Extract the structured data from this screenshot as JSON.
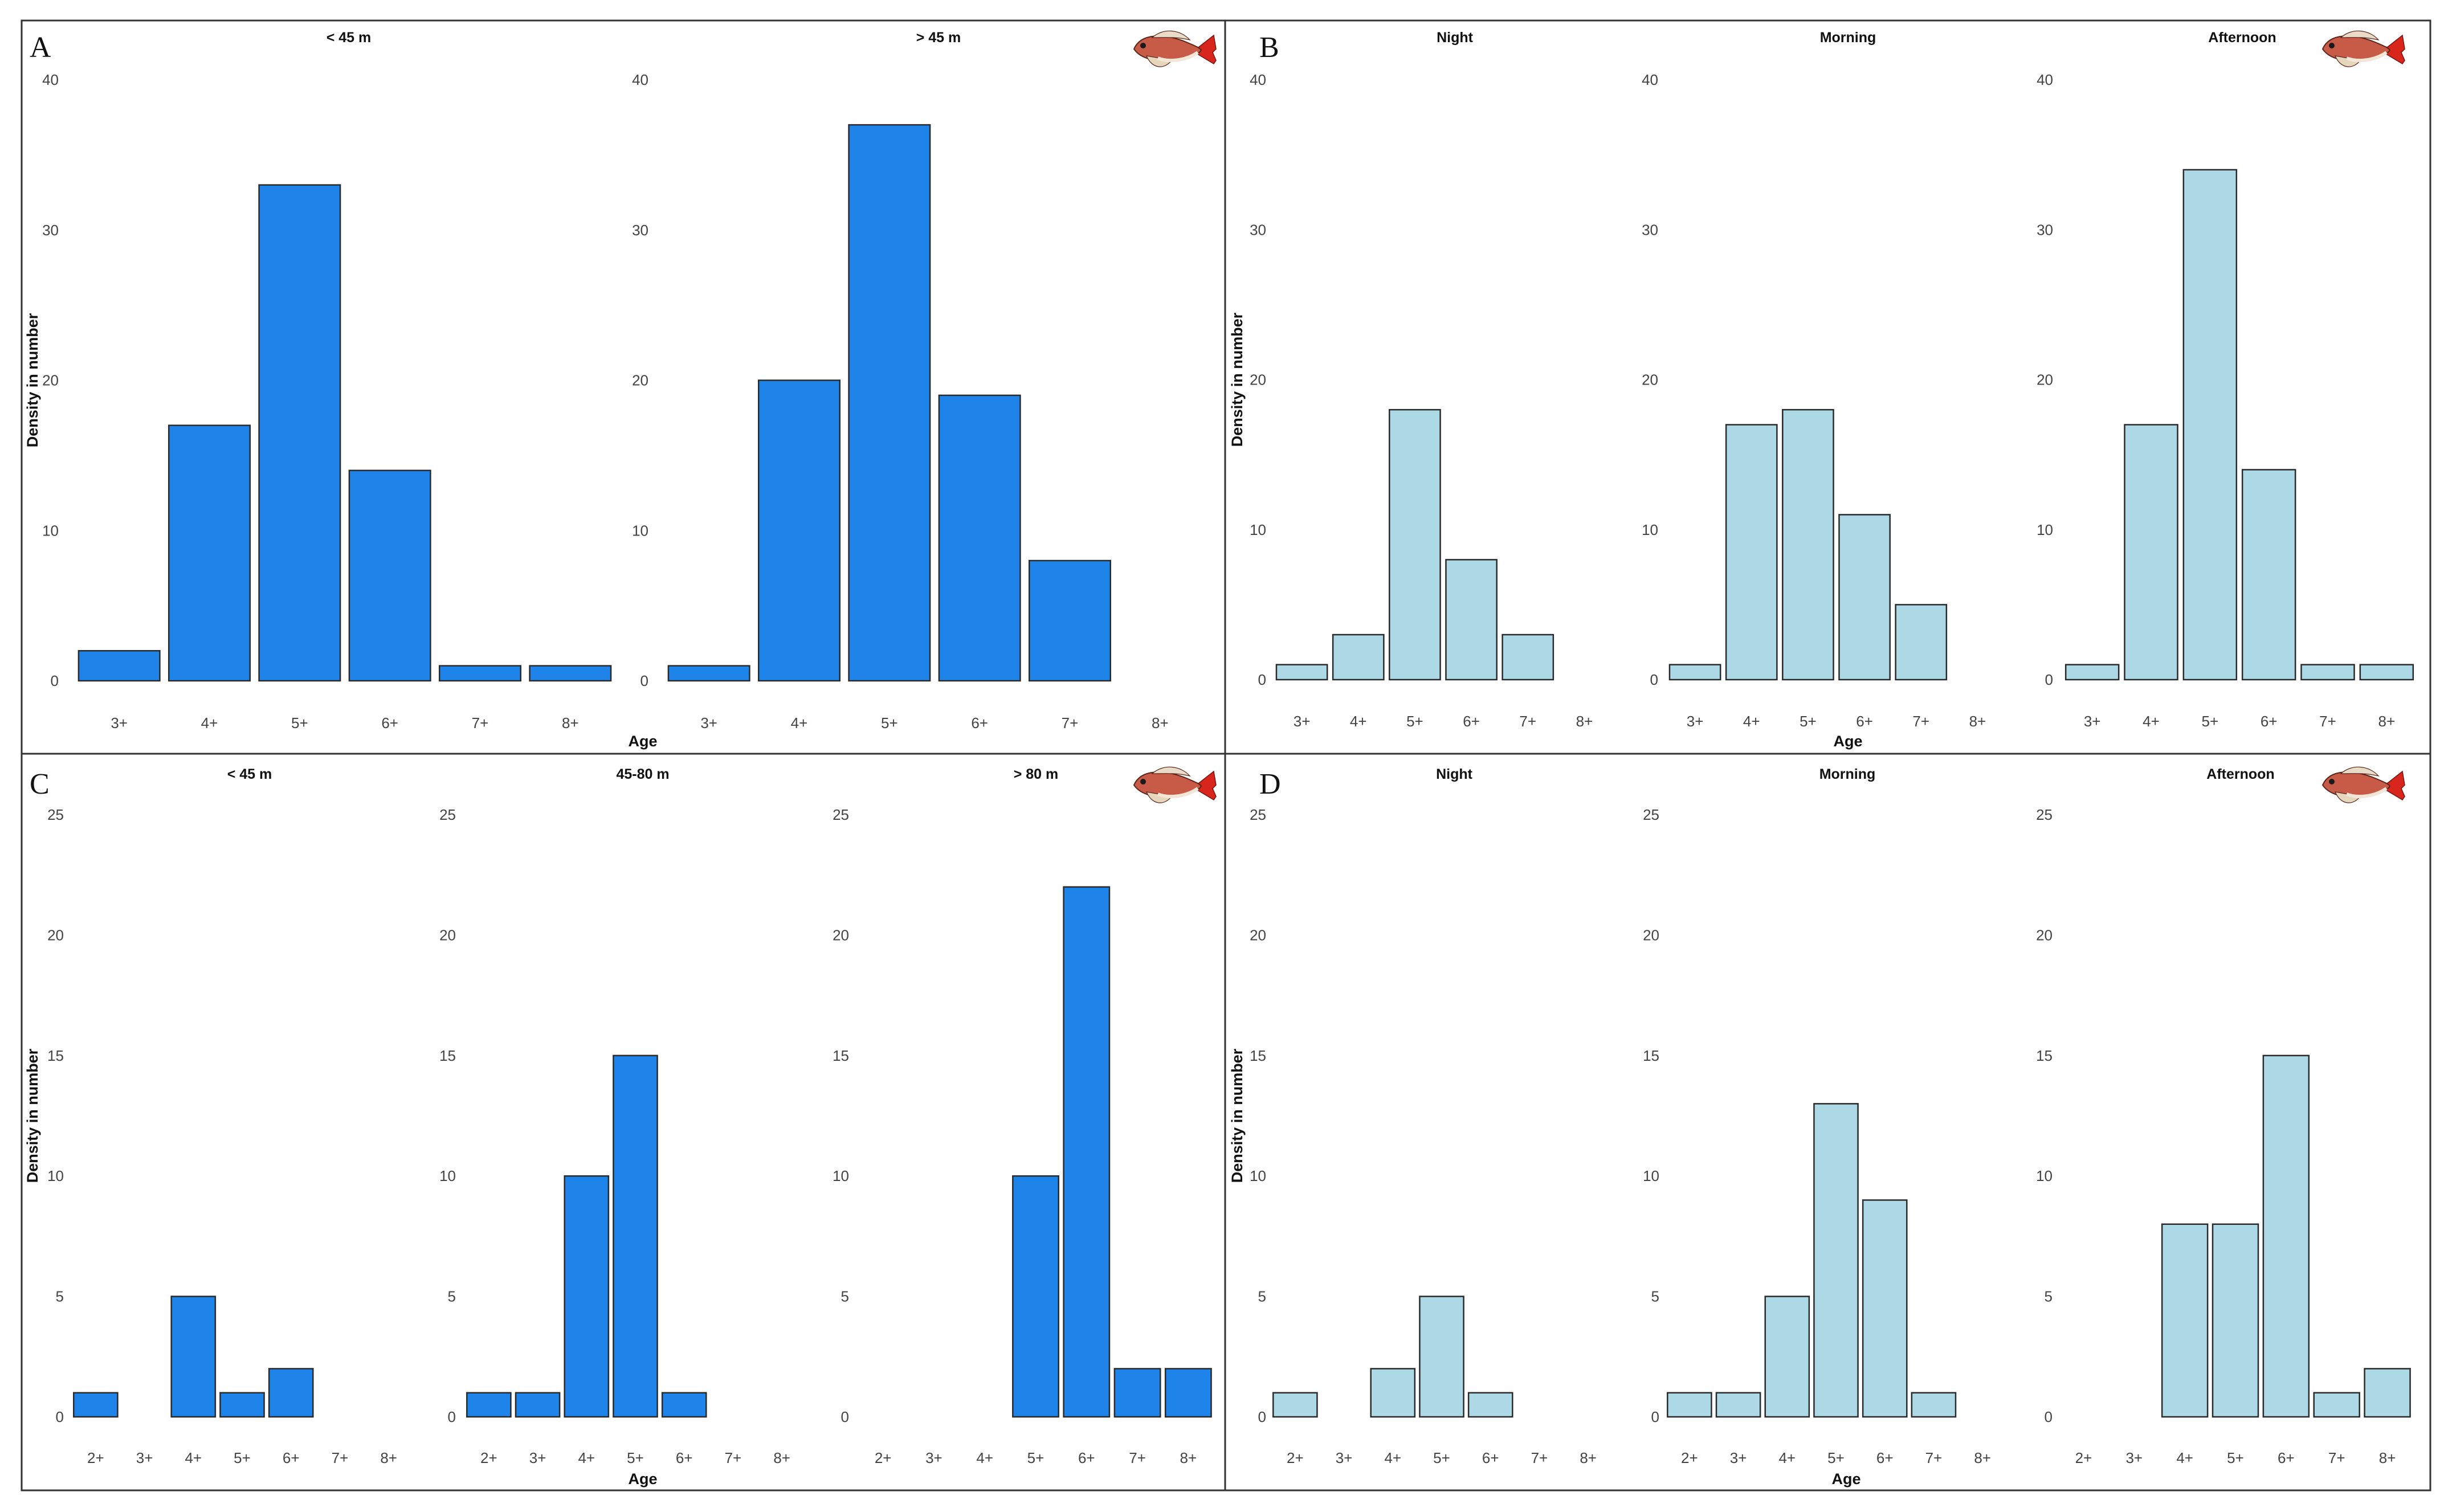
{
  "colors": {
    "dark_bar": "#1E84EA",
    "light_bar": "#ADD8E6",
    "bar_stroke": "#2a2a2a"
  },
  "icons": {
    "fish": "red-gurnard-fish-icon"
  },
  "chart_data": [
    {
      "id": "A",
      "letter": "A",
      "type": "bar",
      "ylabel": "Density in number",
      "xlabel": "Age",
      "ylim": [
        0,
        40
      ],
      "yticks": [
        0,
        10,
        20,
        30,
        40
      ],
      "categories": [
        "3+",
        "4+",
        "5+",
        "6+",
        "7+",
        "8+"
      ],
      "fill": "dark",
      "facets": [
        {
          "title": "< 45 m",
          "values": [
            2,
            17,
            33,
            14,
            1,
            1
          ]
        },
        {
          "title": "> 45 m",
          "values": [
            1,
            20,
            37,
            19,
            8,
            0
          ]
        }
      ]
    },
    {
      "id": "B",
      "letter": "B",
      "type": "bar",
      "ylabel": "Density in number",
      "xlabel": "Age",
      "ylim": [
        0,
        40
      ],
      "yticks": [
        0,
        10,
        20,
        30,
        40
      ],
      "categories": [
        "3+",
        "4+",
        "5+",
        "6+",
        "7+",
        "8+"
      ],
      "fill": "light",
      "facets": [
        {
          "title": "Night",
          "values": [
            1,
            3,
            18,
            8,
            3,
            0
          ]
        },
        {
          "title": "Morning",
          "values": [
            1,
            17,
            18,
            11,
            5,
            0
          ]
        },
        {
          "title": "Afternoon",
          "values": [
            1,
            17,
            34,
            14,
            1,
            1
          ]
        }
      ]
    },
    {
      "id": "C",
      "letter": "C",
      "type": "bar",
      "ylabel": "Density in number",
      "xlabel": "Age",
      "ylim": [
        0,
        25
      ],
      "yticks": [
        0,
        5,
        10,
        15,
        20,
        25
      ],
      "categories": [
        "2+",
        "3+",
        "4+",
        "5+",
        "6+",
        "7+",
        "8+"
      ],
      "fill": "dark",
      "facets": [
        {
          "title": "< 45 m",
          "values": [
            1,
            0,
            5,
            1,
            2,
            0,
            0
          ]
        },
        {
          "title": "45-80 m",
          "values": [
            1,
            1,
            10,
            15,
            1,
            0,
            0
          ]
        },
        {
          "title": "> 80 m",
          "values": [
            0,
            0,
            0,
            10,
            22,
            2,
            2
          ]
        }
      ]
    },
    {
      "id": "D",
      "letter": "D",
      "type": "bar",
      "ylabel": "Density in number",
      "xlabel": "Age",
      "ylim": [
        0,
        25
      ],
      "yticks": [
        0,
        5,
        10,
        15,
        20,
        25
      ],
      "categories": [
        "2+",
        "3+",
        "4+",
        "5+",
        "6+",
        "7+",
        "8+"
      ],
      "fill": "light",
      "facets": [
        {
          "title": "Night",
          "values": [
            1,
            0,
            2,
            5,
            1,
            0,
            0
          ]
        },
        {
          "title": "Morning",
          "values": [
            1,
            1,
            5,
            13,
            9,
            1,
            0
          ]
        },
        {
          "title": "Afternoon",
          "values": [
            0,
            0,
            8,
            8,
            15,
            1,
            2
          ]
        }
      ]
    }
  ]
}
